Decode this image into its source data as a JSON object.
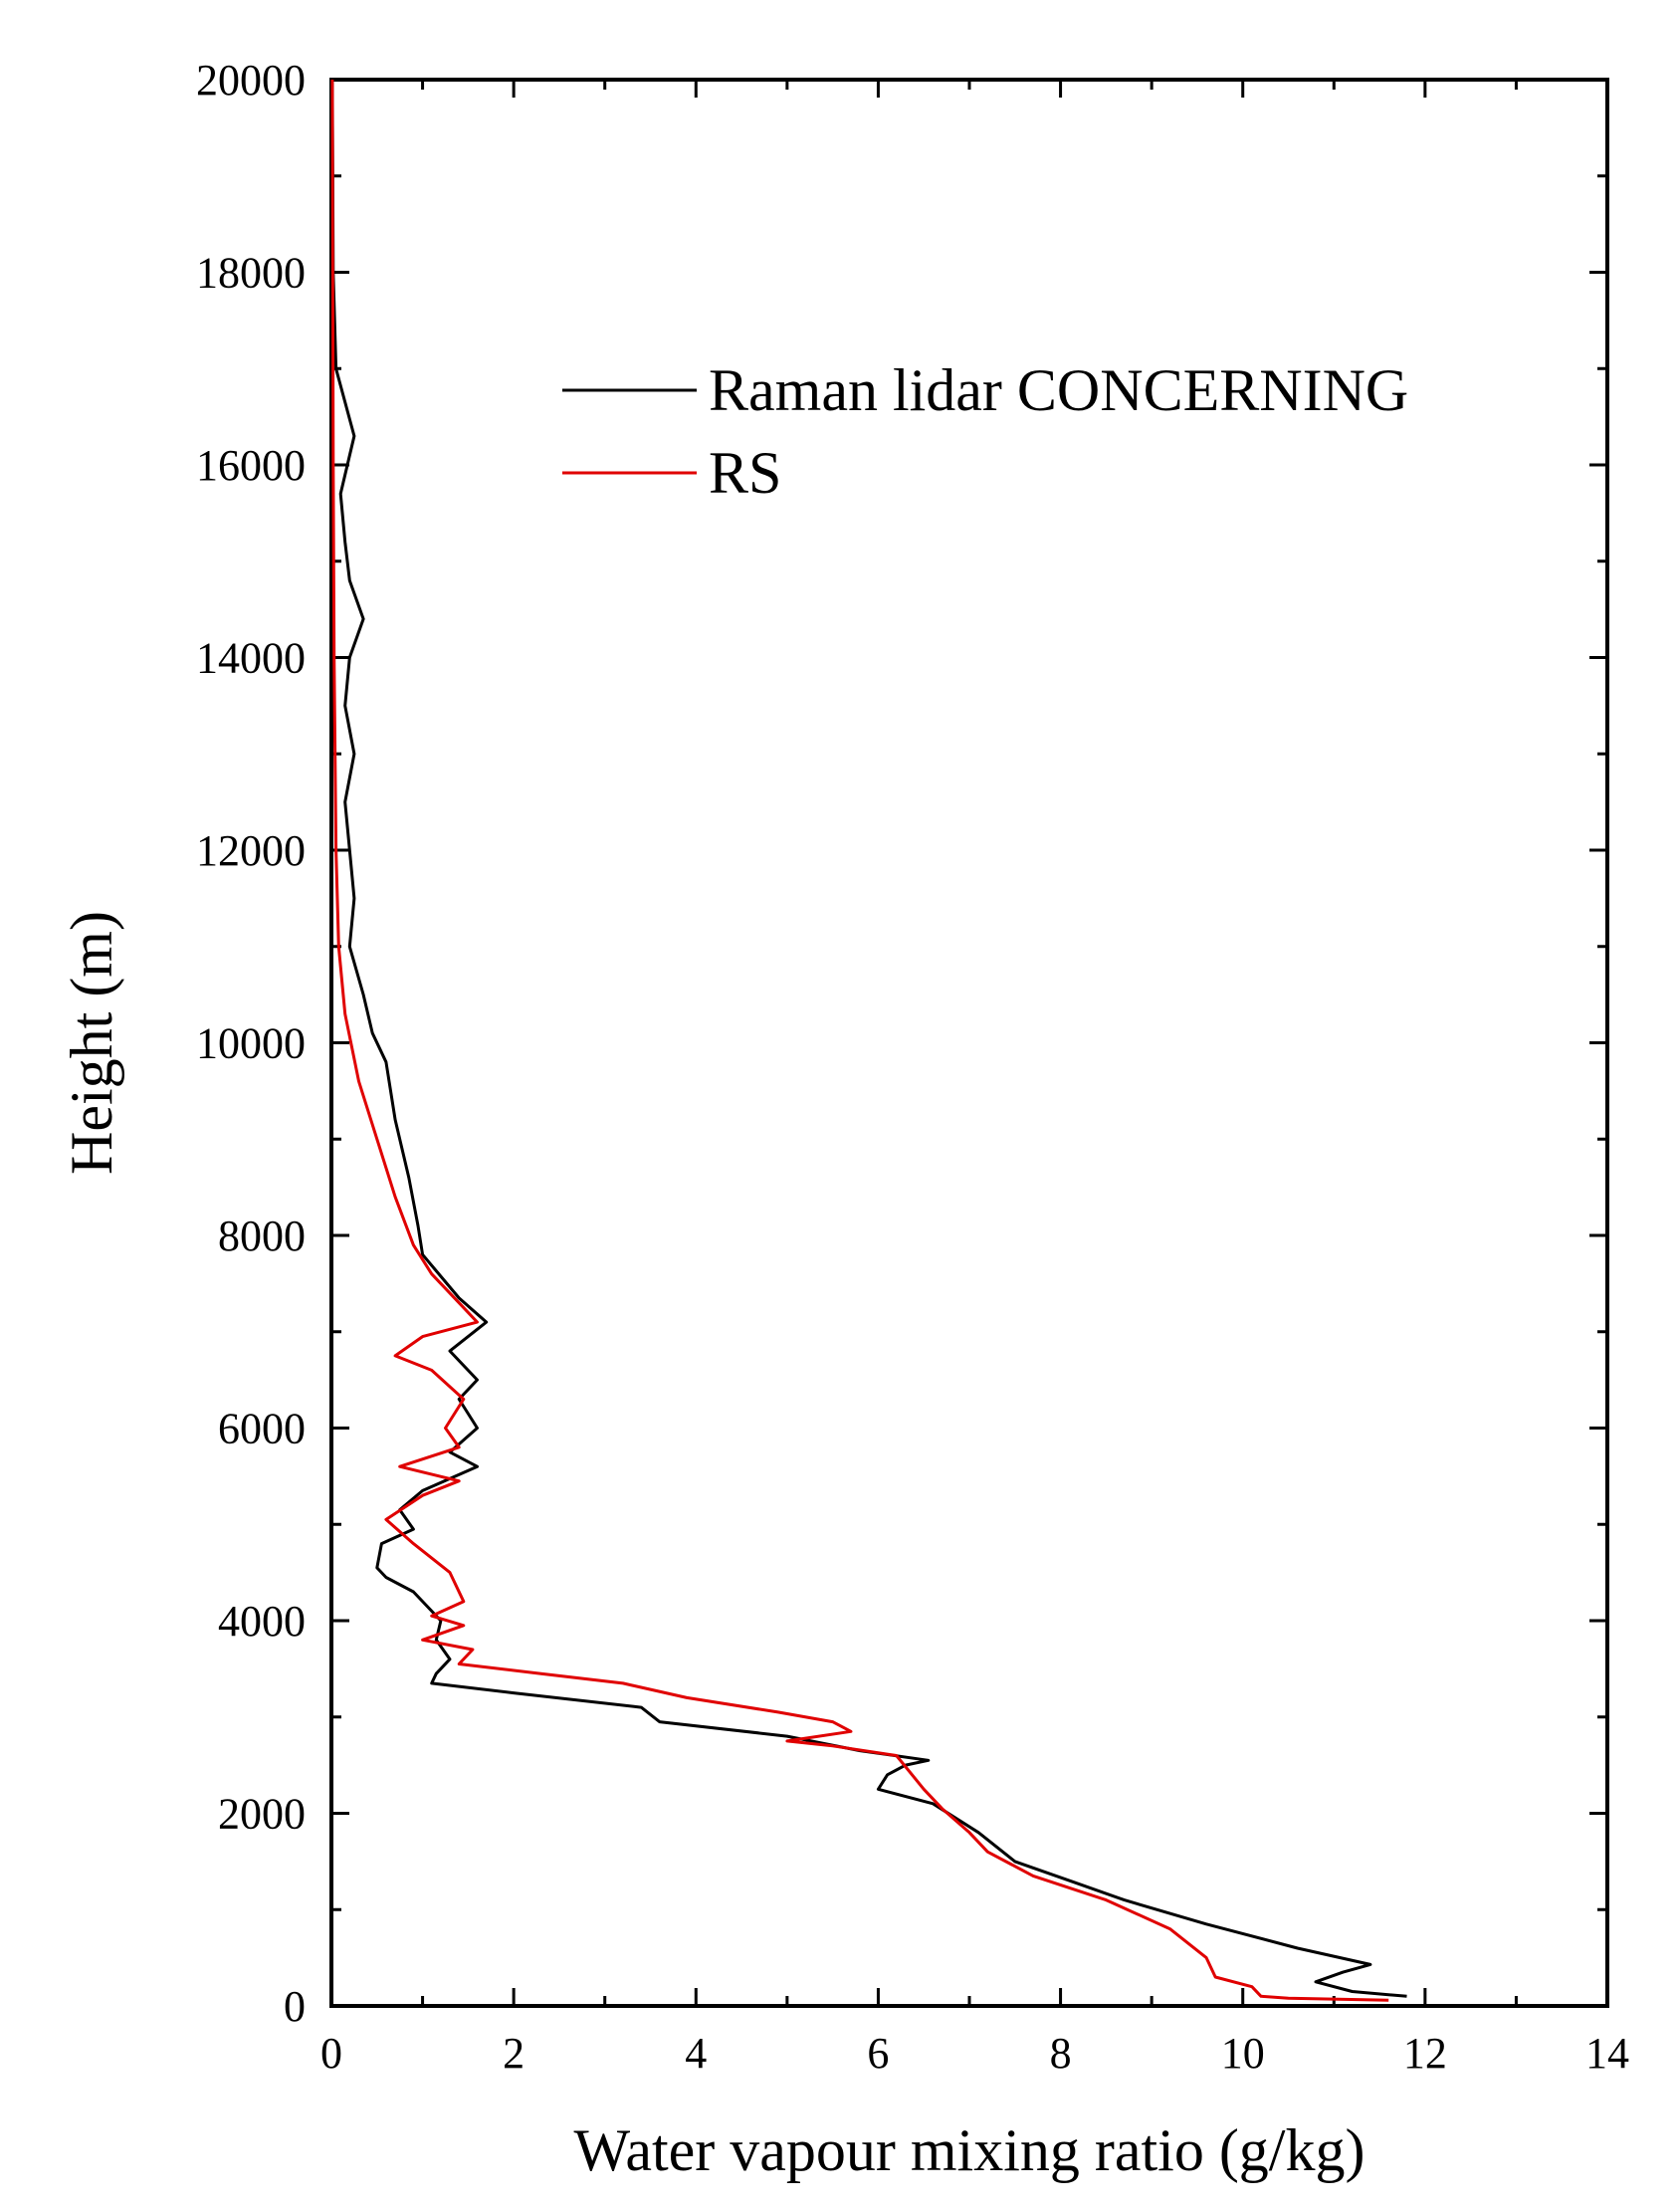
{
  "chart_data": {
    "type": "line",
    "title": "",
    "xlabel": "Water vapour mixing ratio (g/kg)",
    "ylabel": "Height (m)",
    "xlim": [
      0,
      14
    ],
    "ylim": [
      0,
      20000
    ],
    "xticks": [
      0,
      2,
      4,
      6,
      8,
      10,
      12,
      14
    ],
    "yticks": [
      0,
      2000,
      4000,
      6000,
      8000,
      10000,
      12000,
      14000,
      16000,
      18000,
      20000
    ],
    "grid": false,
    "legend_position": "top-right",
    "series": [
      {
        "name": "Raman lidar CONCERNING",
        "color": "#000000",
        "points": [
          [
            11.8,
            100
          ],
          [
            11.2,
            150
          ],
          [
            10.8,
            250
          ],
          [
            11.1,
            350
          ],
          [
            11.4,
            430
          ],
          [
            10.6,
            600
          ],
          [
            9.6,
            850
          ],
          [
            8.7,
            1100
          ],
          [
            8.1,
            1300
          ],
          [
            7.5,
            1500
          ],
          [
            7.1,
            1800
          ],
          [
            6.6,
            2100
          ],
          [
            6.0,
            2250
          ],
          [
            6.1,
            2400
          ],
          [
            6.3,
            2500
          ],
          [
            6.55,
            2550
          ],
          [
            5.8,
            2650
          ],
          [
            5.0,
            2800
          ],
          [
            3.6,
            2950
          ],
          [
            3.4,
            3100
          ],
          [
            2.0,
            3250
          ],
          [
            1.1,
            3350
          ],
          [
            1.15,
            3450
          ],
          [
            1.3,
            3600
          ],
          [
            1.15,
            3800
          ],
          [
            1.2,
            4000
          ],
          [
            0.9,
            4300
          ],
          [
            0.6,
            4450
          ],
          [
            0.5,
            4550
          ],
          [
            0.55,
            4800
          ],
          [
            0.9,
            4950
          ],
          [
            0.75,
            5150
          ],
          [
            1.0,
            5350
          ],
          [
            1.6,
            5600
          ],
          [
            1.3,
            5750
          ],
          [
            1.6,
            6000
          ],
          [
            1.4,
            6300
          ],
          [
            1.6,
            6500
          ],
          [
            1.3,
            6800
          ],
          [
            1.7,
            7100
          ],
          [
            1.4,
            7350
          ],
          [
            1.0,
            7800
          ],
          [
            0.95,
            8100
          ],
          [
            0.85,
            8600
          ],
          [
            0.7,
            9200
          ],
          [
            0.6,
            9800
          ],
          [
            0.45,
            10100
          ],
          [
            0.35,
            10500
          ],
          [
            0.2,
            11000
          ],
          [
            0.25,
            11500
          ],
          [
            0.2,
            12000
          ],
          [
            0.15,
            12500
          ],
          [
            0.25,
            13000
          ],
          [
            0.15,
            13500
          ],
          [
            0.2,
            14000
          ],
          [
            0.35,
            14400
          ],
          [
            0.2,
            14800
          ],
          [
            0.15,
            15200
          ],
          [
            0.1,
            15700
          ],
          [
            0.25,
            16300
          ],
          [
            0.05,
            17000
          ],
          [
            0.02,
            18000
          ],
          [
            0.01,
            20000
          ]
        ]
      },
      {
        "name": "RS",
        "color": "#e00000",
        "points": [
          [
            11.6,
            60
          ],
          [
            10.5,
            80
          ],
          [
            10.2,
            100
          ],
          [
            10.1,
            200
          ],
          [
            9.7,
            300
          ],
          [
            9.6,
            500
          ],
          [
            9.2,
            800
          ],
          [
            8.5,
            1100
          ],
          [
            7.7,
            1350
          ],
          [
            7.2,
            1600
          ],
          [
            7.0,
            1800
          ],
          [
            6.7,
            2050
          ],
          [
            6.5,
            2250
          ],
          [
            6.2,
            2600
          ],
          [
            5.5,
            2700
          ],
          [
            5.0,
            2750
          ],
          [
            5.7,
            2850
          ],
          [
            5.5,
            2950
          ],
          [
            4.9,
            3050
          ],
          [
            3.9,
            3200
          ],
          [
            3.2,
            3350
          ],
          [
            2.3,
            3450
          ],
          [
            1.4,
            3550
          ],
          [
            1.55,
            3700
          ],
          [
            1.0,
            3800
          ],
          [
            1.45,
            3950
          ],
          [
            1.1,
            4050
          ],
          [
            1.45,
            4200
          ],
          [
            1.3,
            4500
          ],
          [
            0.9,
            4800
          ],
          [
            0.6,
            5050
          ],
          [
            1.0,
            5300
          ],
          [
            1.4,
            5450
          ],
          [
            0.75,
            5600
          ],
          [
            1.4,
            5800
          ],
          [
            1.25,
            6000
          ],
          [
            1.45,
            6300
          ],
          [
            1.1,
            6600
          ],
          [
            0.7,
            6750
          ],
          [
            1.0,
            6950
          ],
          [
            1.6,
            7100
          ],
          [
            1.4,
            7300
          ],
          [
            1.1,
            7600
          ],
          [
            0.9,
            7900
          ],
          [
            0.7,
            8400
          ],
          [
            0.5,
            9000
          ],
          [
            0.3,
            9600
          ],
          [
            0.15,
            10300
          ],
          [
            0.08,
            11000
          ],
          [
            0.05,
            12000
          ],
          [
            0.03,
            14000
          ],
          [
            0.02,
            16000
          ],
          [
            0.01,
            20000
          ]
        ]
      }
    ]
  }
}
